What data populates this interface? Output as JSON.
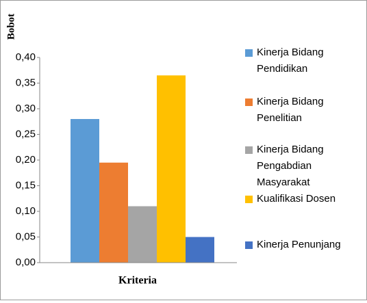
{
  "chart_data": {
    "type": "bar",
    "ylabel": "Bobot",
    "xlabel": "Kriteria",
    "categories": [
      null
    ],
    "series": [
      {
        "name": "Kinerja Bidang Pendidikan",
        "color": "#5b9bd5",
        "values": [
          0.28
        ]
      },
      {
        "name": "Kinerja Bidang Penelitian",
        "color": "#ed7d31",
        "values": [
          0.195
        ]
      },
      {
        "name": "Kinerja Bidang Pengabdian Masyarakat",
        "color": "#a5a5a5",
        "values": [
          0.11
        ]
      },
      {
        "name": "Kualifikasi Dosen",
        "color": "#ffc000",
        "values": [
          0.365
        ]
      },
      {
        "name": "Kinerja Penunjang",
        "color": "#4472c4",
        "values": [
          0.05
        ]
      }
    ],
    "ylim": [
      0,
      0.4
    ],
    "yticks": [
      {
        "value": 0,
        "label": "0,00"
      },
      {
        "value": 0.05,
        "label": "0,05"
      },
      {
        "value": 0.1,
        "label": "0,10"
      },
      {
        "value": 0.15,
        "label": "0,15"
      },
      {
        "value": 0.2,
        "label": "0,20"
      },
      {
        "value": 0.25,
        "label": "0,25"
      },
      {
        "value": 0.3,
        "label": "0,30"
      },
      {
        "value": 0.35,
        "label": "0,35"
      },
      {
        "value": 0.4,
        "label": "0,40"
      }
    ],
    "grid": false,
    "legend": "right"
  }
}
